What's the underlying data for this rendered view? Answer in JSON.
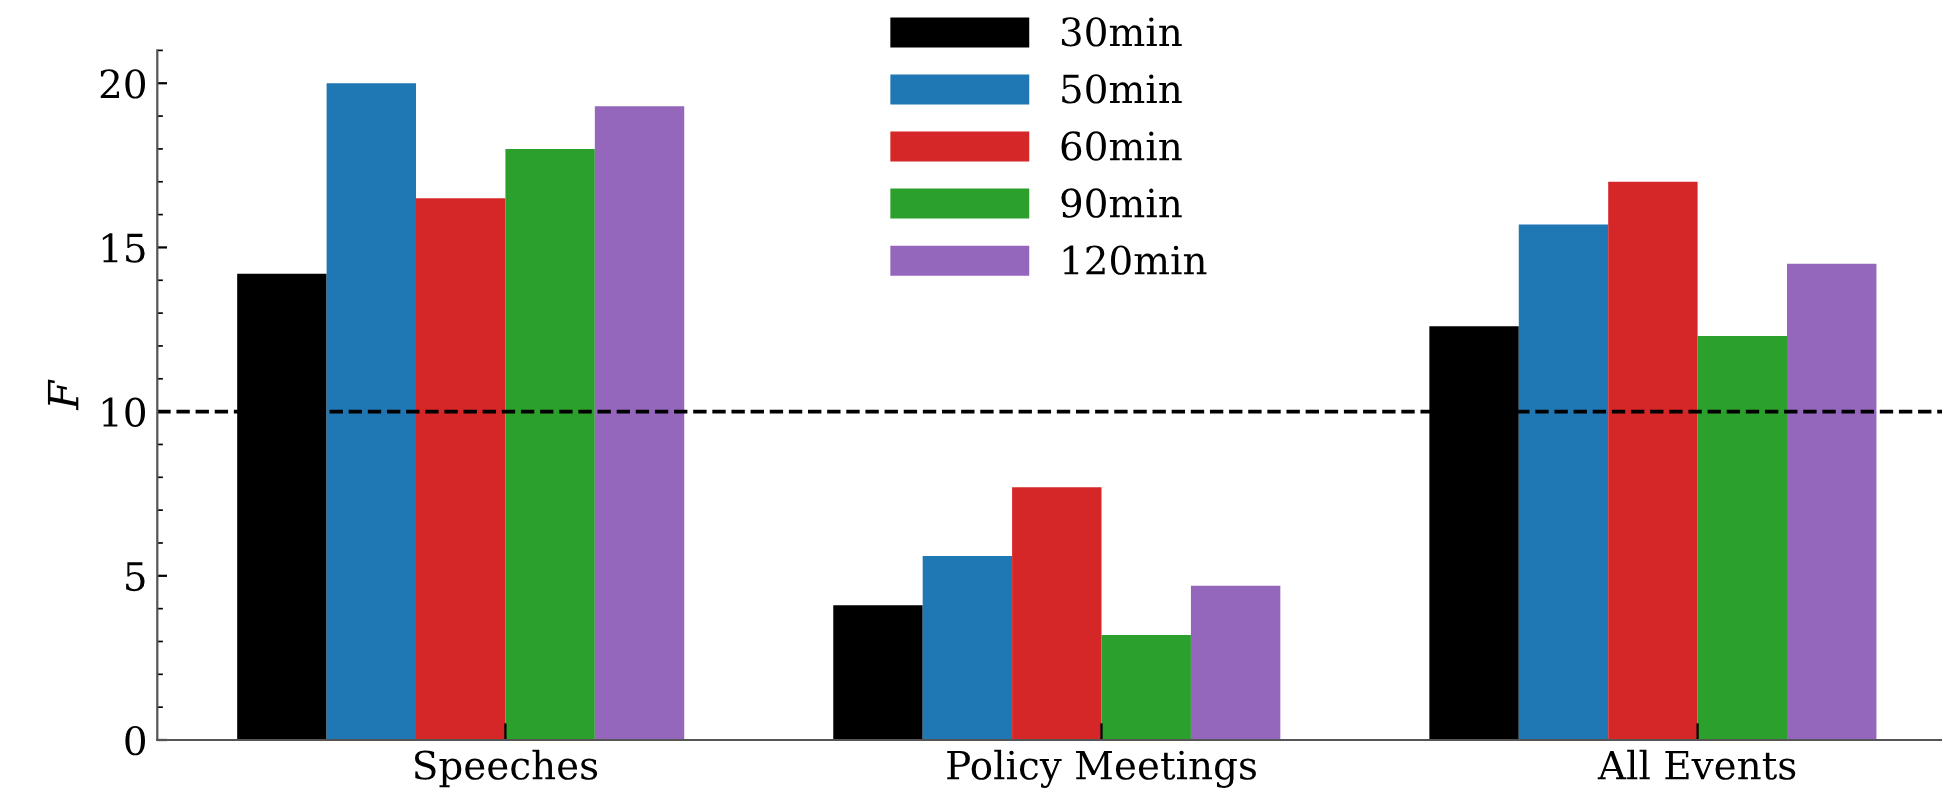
{
  "chart_data": {
    "type": "bar",
    "ylabel": "F",
    "categories": [
      "Speeches",
      "Policy Meetings",
      "All Events"
    ],
    "series": [
      {
        "name": "30min",
        "color": "#000000",
        "values": [
          14.2,
          4.1,
          12.6
        ]
      },
      {
        "name": "50min",
        "color": "#1f77b4",
        "values": [
          20.0,
          5.6,
          15.7
        ]
      },
      {
        "name": "60min",
        "color": "#d62728",
        "values": [
          16.5,
          7.7,
          17.0
        ]
      },
      {
        "name": "90min",
        "color": "#2ca02c",
        "values": [
          18.0,
          3.2,
          12.3
        ]
      },
      {
        "name": "120min",
        "color": "#9467bd",
        "values": [
          19.3,
          4.7,
          14.5
        ]
      }
    ],
    "ylim": [
      0,
      21
    ],
    "yticks": [
      0,
      5,
      10,
      15,
      20
    ],
    "ref_lines": [
      {
        "axis": "y",
        "value": 10,
        "color": "#000000",
        "line_style": "dashed"
      }
    ],
    "legend": "top",
    "grid": false
  }
}
